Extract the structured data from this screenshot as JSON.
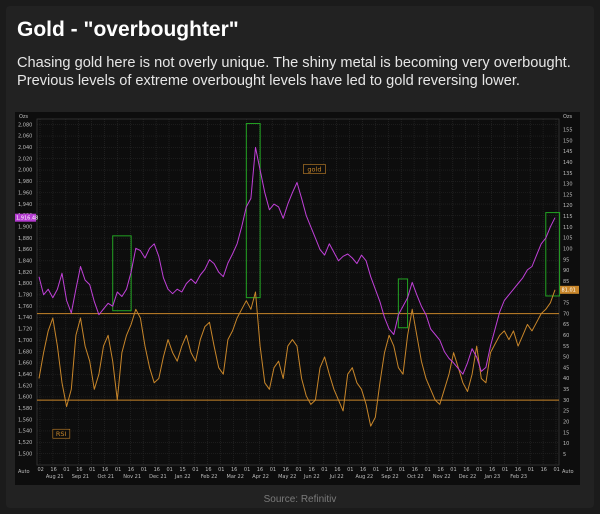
{
  "header": {
    "title": "Gold - \"overboughter\"",
    "subtitle": "Chasing gold here is not overly unique. The shiny metal is becoming very overbought. Previous levels of extreme overbought levels have led to gold reversing lower."
  },
  "footer": {
    "source": "Source: Refinitiv"
  },
  "colors": {
    "gold_line": "#c040d8",
    "rsi_line": "#c8862a",
    "box_outline": "#23a323",
    "threshold_line": "#c8862a",
    "background": "#0d0d0d"
  },
  "chart_data": {
    "type": "line",
    "title": "",
    "x_ticks_days": [
      "02",
      "16",
      "01",
      "16",
      "01",
      "16",
      "01",
      "16",
      "01",
      "16",
      "01",
      "15",
      "01",
      "16",
      "01",
      "16",
      "01",
      "16",
      "01",
      "16",
      "01",
      "16",
      "01",
      "16",
      "01",
      "16",
      "01",
      "16",
      "01",
      "16",
      "01",
      "16",
      "01",
      "16",
      "01",
      "16",
      "01",
      "16",
      "01",
      "16",
      "01"
    ],
    "x_ticks_months": [
      "Aug 21",
      "Sep 21",
      "Oct 21",
      "Nov 21",
      "Dec 21",
      "Jan 22",
      "Feb 22",
      "Mar 22",
      "Apr 22",
      "May 22",
      "Jun 22",
      "Jul 22",
      "Aug 22",
      "Sep 22",
      "Oct 22",
      "Nov 22",
      "Dec 22",
      "Jan 23",
      "Feb 23"
    ],
    "left_axis": {
      "unit": "Ozs",
      "ylim": [
        1480,
        2090
      ],
      "ticks": [
        "2,080",
        "2,060",
        "2,040",
        "2,020",
        "2,000",
        "1,980",
        "1,960",
        "1,940",
        "1,920",
        "1,900",
        "1,880",
        "1,860",
        "1,840",
        "1,820",
        "1,800",
        "1,780",
        "1,760",
        "1,740",
        "1,720",
        "1,700",
        "1,680",
        "1,660",
        "1,640",
        "1,620",
        "1,600",
        "1,580",
        "1,560",
        "1,540",
        "1,520",
        "1,500",
        "Auto"
      ]
    },
    "right_axis": {
      "unit": "Ozs",
      "ylim": [
        0,
        160
      ],
      "ticks": [
        "155",
        "150",
        "145",
        "140",
        "135",
        "130",
        "125",
        "120",
        "115",
        "110",
        "105",
        "100",
        "95",
        "90",
        "85",
        "80",
        "75",
        "70",
        "65",
        "60",
        "55",
        "50",
        "45",
        "40",
        "35",
        "30",
        "25",
        "20",
        "15",
        "10",
        "5",
        "Auto"
      ]
    },
    "series": [
      {
        "name": "gold",
        "axis": "left",
        "last_value_label": "1,916.48",
        "values": [
          1812,
          1780,
          1790,
          1775,
          1790,
          1818,
          1770,
          1748,
          1790,
          1830,
          1806,
          1798,
          1768,
          1745,
          1755,
          1765,
          1760,
          1785,
          1777,
          1790,
          1820,
          1862,
          1858,
          1845,
          1862,
          1870,
          1848,
          1810,
          1790,
          1782,
          1790,
          1785,
          1800,
          1808,
          1800,
          1815,
          1825,
          1842,
          1835,
          1820,
          1812,
          1836,
          1852,
          1870,
          1900,
          1935,
          1950,
          2040,
          2000,
          1960,
          1930,
          1940,
          1935,
          1915,
          1940,
          1960,
          1978,
          1950,
          1920,
          1900,
          1880,
          1860,
          1850,
          1870,
          1855,
          1840,
          1848,
          1852,
          1845,
          1835,
          1850,
          1840,
          1812,
          1790,
          1768,
          1740,
          1720,
          1710,
          1745,
          1760,
          1775,
          1802,
          1780,
          1760,
          1745,
          1720,
          1710,
          1700,
          1680,
          1668,
          1660,
          1650,
          1640,
          1660,
          1685,
          1670,
          1645,
          1652,
          1690,
          1720,
          1750,
          1770,
          1780,
          1790,
          1800,
          1810,
          1824,
          1830,
          1850,
          1870,
          1880,
          1900,
          1916
        ]
      },
      {
        "name": "RSI",
        "axis": "right",
        "last_value_label": "81.01",
        "values": [
          40,
          52,
          62,
          68,
          55,
          38,
          27,
          35,
          60,
          68,
          55,
          48,
          35,
          42,
          55,
          60,
          48,
          30,
          52,
          60,
          65,
          72,
          68,
          55,
          45,
          38,
          40,
          50,
          58,
          52,
          48,
          55,
          60,
          52,
          48,
          58,
          64,
          66,
          55,
          45,
          42,
          58,
          62,
          68,
          72,
          76,
          72,
          80,
          55,
          38,
          35,
          45,
          48,
          40,
          55,
          58,
          55,
          40,
          32,
          28,
          30,
          45,
          50,
          42,
          35,
          30,
          25,
          42,
          45,
          38,
          35,
          28,
          18,
          22,
          38,
          52,
          60,
          55,
          45,
          42,
          60,
          72,
          60,
          48,
          40,
          35,
          30,
          28,
          35,
          42,
          52,
          45,
          38,
          34,
          42,
          55,
          40,
          38,
          52,
          56,
          60,
          62,
          58,
          62,
          55,
          60,
          65,
          62,
          66,
          70,
          72,
          75,
          81
        ]
      }
    ],
    "reference_lines": [
      {
        "axis": "right",
        "value": 70
      },
      {
        "axis": "right",
        "value": 30
      }
    ],
    "highlight_boxes": [
      {
        "x_index_range": [
          16,
          20
        ],
        "gold_range": [
          1752,
          1884
        ]
      },
      {
        "x_index_range": [
          45,
          48
        ],
        "gold_range": [
          1775,
          2082
        ]
      },
      {
        "x_index_range": [
          78,
          80
        ],
        "gold_range": [
          1722,
          1808
        ]
      },
      {
        "x_index_range": [
          110,
          113
        ],
        "gold_range": [
          1778,
          1925
        ]
      }
    ]
  }
}
